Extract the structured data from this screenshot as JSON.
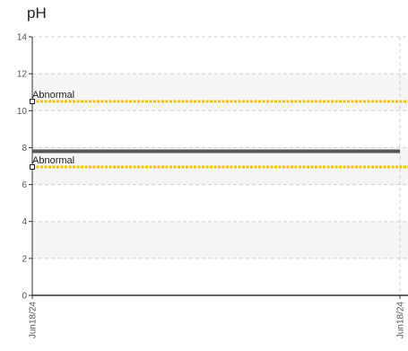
{
  "chart_data": {
    "type": "line",
    "title": "pH",
    "xlabel": "",
    "ylabel": "",
    "ylim": [
      0,
      14
    ],
    "yticks": [
      0,
      2,
      4,
      6,
      8,
      10,
      12,
      14
    ],
    "xticks": [
      "Jun18/24",
      "Jun18/24"
    ],
    "grid": true,
    "bands": [
      {
        "from": 2,
        "to": 4
      },
      {
        "from": 6,
        "to": 8
      },
      {
        "from": 10,
        "to": 12
      }
    ],
    "series": [
      {
        "values": [
          7.8,
          7.8
        ],
        "color": "#555555"
      }
    ],
    "reference_lines": [
      {
        "label": "Abnormal",
        "value": 10.5,
        "color": "#f2c200"
      },
      {
        "label": "Abnormal",
        "value": 6.95,
        "color": "#f2c200"
      }
    ]
  }
}
